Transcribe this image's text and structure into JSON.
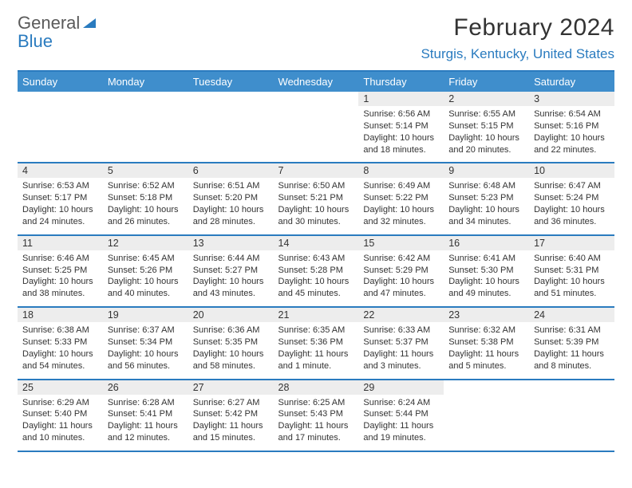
{
  "logo": {
    "top": "General",
    "bottom": "Blue"
  },
  "title": "February 2024",
  "location": "Sturgis, Kentucky, United States",
  "colors": {
    "header_bg": "#3f8ecc",
    "accent": "#2a7bbf",
    "daynum_bg": "#ededed",
    "text": "#333333"
  },
  "week_header": [
    "Sunday",
    "Monday",
    "Tuesday",
    "Wednesday",
    "Thursday",
    "Friday",
    "Saturday"
  ],
  "weeks": [
    [
      null,
      null,
      null,
      null,
      {
        "n": "1",
        "sr": "6:56 AM",
        "ss": "5:14 PM",
        "dl": "10 hours and 18 minutes."
      },
      {
        "n": "2",
        "sr": "6:55 AM",
        "ss": "5:15 PM",
        "dl": "10 hours and 20 minutes."
      },
      {
        "n": "3",
        "sr": "6:54 AM",
        "ss": "5:16 PM",
        "dl": "10 hours and 22 minutes."
      }
    ],
    [
      {
        "n": "4",
        "sr": "6:53 AM",
        "ss": "5:17 PM",
        "dl": "10 hours and 24 minutes."
      },
      {
        "n": "5",
        "sr": "6:52 AM",
        "ss": "5:18 PM",
        "dl": "10 hours and 26 minutes."
      },
      {
        "n": "6",
        "sr": "6:51 AM",
        "ss": "5:20 PM",
        "dl": "10 hours and 28 minutes."
      },
      {
        "n": "7",
        "sr": "6:50 AM",
        "ss": "5:21 PM",
        "dl": "10 hours and 30 minutes."
      },
      {
        "n": "8",
        "sr": "6:49 AM",
        "ss": "5:22 PM",
        "dl": "10 hours and 32 minutes."
      },
      {
        "n": "9",
        "sr": "6:48 AM",
        "ss": "5:23 PM",
        "dl": "10 hours and 34 minutes."
      },
      {
        "n": "10",
        "sr": "6:47 AM",
        "ss": "5:24 PM",
        "dl": "10 hours and 36 minutes."
      }
    ],
    [
      {
        "n": "11",
        "sr": "6:46 AM",
        "ss": "5:25 PM",
        "dl": "10 hours and 38 minutes."
      },
      {
        "n": "12",
        "sr": "6:45 AM",
        "ss": "5:26 PM",
        "dl": "10 hours and 40 minutes."
      },
      {
        "n": "13",
        "sr": "6:44 AM",
        "ss": "5:27 PM",
        "dl": "10 hours and 43 minutes."
      },
      {
        "n": "14",
        "sr": "6:43 AM",
        "ss": "5:28 PM",
        "dl": "10 hours and 45 minutes."
      },
      {
        "n": "15",
        "sr": "6:42 AM",
        "ss": "5:29 PM",
        "dl": "10 hours and 47 minutes."
      },
      {
        "n": "16",
        "sr": "6:41 AM",
        "ss": "5:30 PM",
        "dl": "10 hours and 49 minutes."
      },
      {
        "n": "17",
        "sr": "6:40 AM",
        "ss": "5:31 PM",
        "dl": "10 hours and 51 minutes."
      }
    ],
    [
      {
        "n": "18",
        "sr": "6:38 AM",
        "ss": "5:33 PM",
        "dl": "10 hours and 54 minutes."
      },
      {
        "n": "19",
        "sr": "6:37 AM",
        "ss": "5:34 PM",
        "dl": "10 hours and 56 minutes."
      },
      {
        "n": "20",
        "sr": "6:36 AM",
        "ss": "5:35 PM",
        "dl": "10 hours and 58 minutes."
      },
      {
        "n": "21",
        "sr": "6:35 AM",
        "ss": "5:36 PM",
        "dl": "11 hours and 1 minute."
      },
      {
        "n": "22",
        "sr": "6:33 AM",
        "ss": "5:37 PM",
        "dl": "11 hours and 3 minutes."
      },
      {
        "n": "23",
        "sr": "6:32 AM",
        "ss": "5:38 PM",
        "dl": "11 hours and 5 minutes."
      },
      {
        "n": "24",
        "sr": "6:31 AM",
        "ss": "5:39 PM",
        "dl": "11 hours and 8 minutes."
      }
    ],
    [
      {
        "n": "25",
        "sr": "6:29 AM",
        "ss": "5:40 PM",
        "dl": "11 hours and 10 minutes."
      },
      {
        "n": "26",
        "sr": "6:28 AM",
        "ss": "5:41 PM",
        "dl": "11 hours and 12 minutes."
      },
      {
        "n": "27",
        "sr": "6:27 AM",
        "ss": "5:42 PM",
        "dl": "11 hours and 15 minutes."
      },
      {
        "n": "28",
        "sr": "6:25 AM",
        "ss": "5:43 PM",
        "dl": "11 hours and 17 minutes."
      },
      {
        "n": "29",
        "sr": "6:24 AM",
        "ss": "5:44 PM",
        "dl": "11 hours and 19 minutes."
      },
      null,
      null
    ]
  ],
  "labels": {
    "sunrise": "Sunrise:",
    "sunset": "Sunset:",
    "daylight": "Daylight:"
  }
}
